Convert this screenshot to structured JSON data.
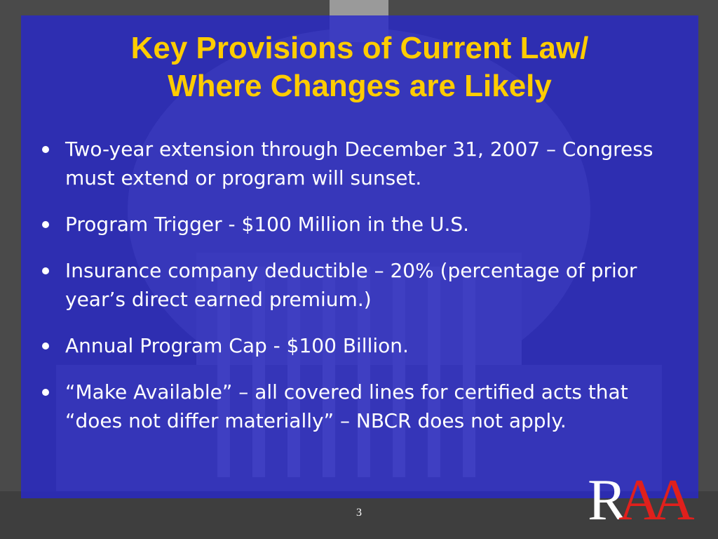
{
  "slide": {
    "title_lines": [
      "Key Provisions of Current Law/",
      "Where Changes are Likely"
    ],
    "bullets": [
      "Two-year extension through December 31, 2007 – Congress must extend or program will sunset.",
      "Program Trigger - $100 Million in the U.S.",
      "Insurance company deductible – 20% (percentage of prior year’s direct earned premium.)",
      "Annual Program Cap - $100 Billion.",
      "“Make Available” – all covered lines for certified acts that “does not differ materially” – NBCR does not apply."
    ],
    "page_number": "3",
    "logo_text": "RAA"
  },
  "colors": {
    "panel": "#2828c8",
    "title": "#ffcc00",
    "body_text": "#ffffff",
    "logo_red": "#e0201c",
    "logo_white": "#ffffff"
  },
  "icons": {
    "background": "capitol-building-photo",
    "logo": "raa-logo"
  }
}
